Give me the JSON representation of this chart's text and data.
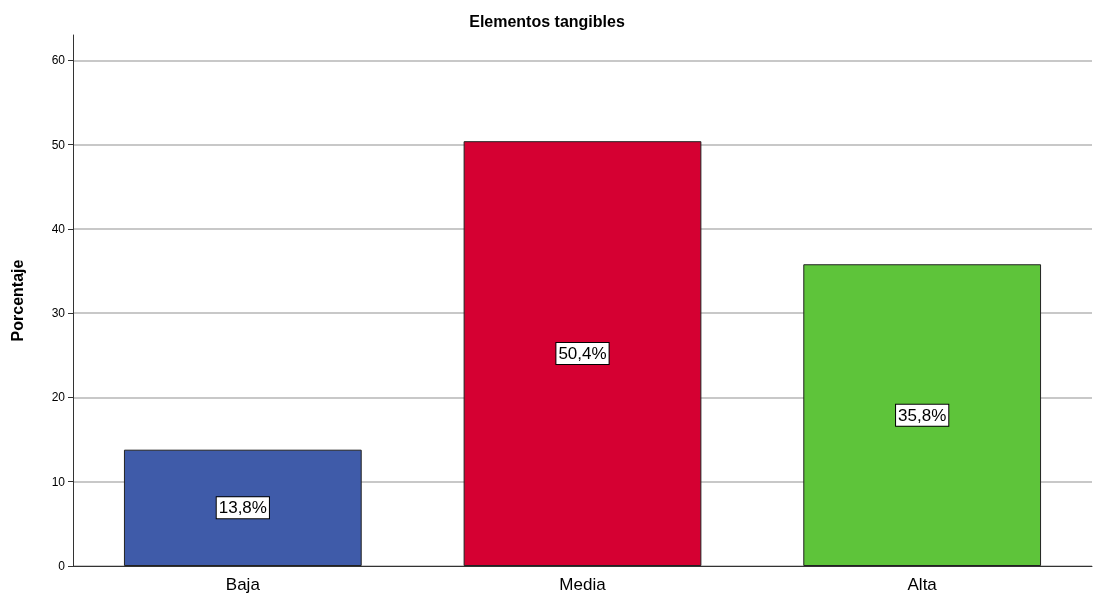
{
  "chart_data": {
    "type": "bar",
    "title": "Elementos tangibles",
    "ylabel": "Porcentaje",
    "categories": [
      "Baja",
      "Media",
      "Alta"
    ],
    "values": [
      13.8,
      50.4,
      35.8
    ],
    "colors": [
      "#3f5ba9",
      "#d50032",
      "#5ec43a"
    ],
    "value_labels": [
      "13,8%",
      "50,4%",
      "35,8%"
    ],
    "ylim": [
      0,
      63
    ],
    "yticks": [
      0,
      10,
      20,
      30,
      40,
      50,
      60
    ],
    "grid": "y"
  }
}
